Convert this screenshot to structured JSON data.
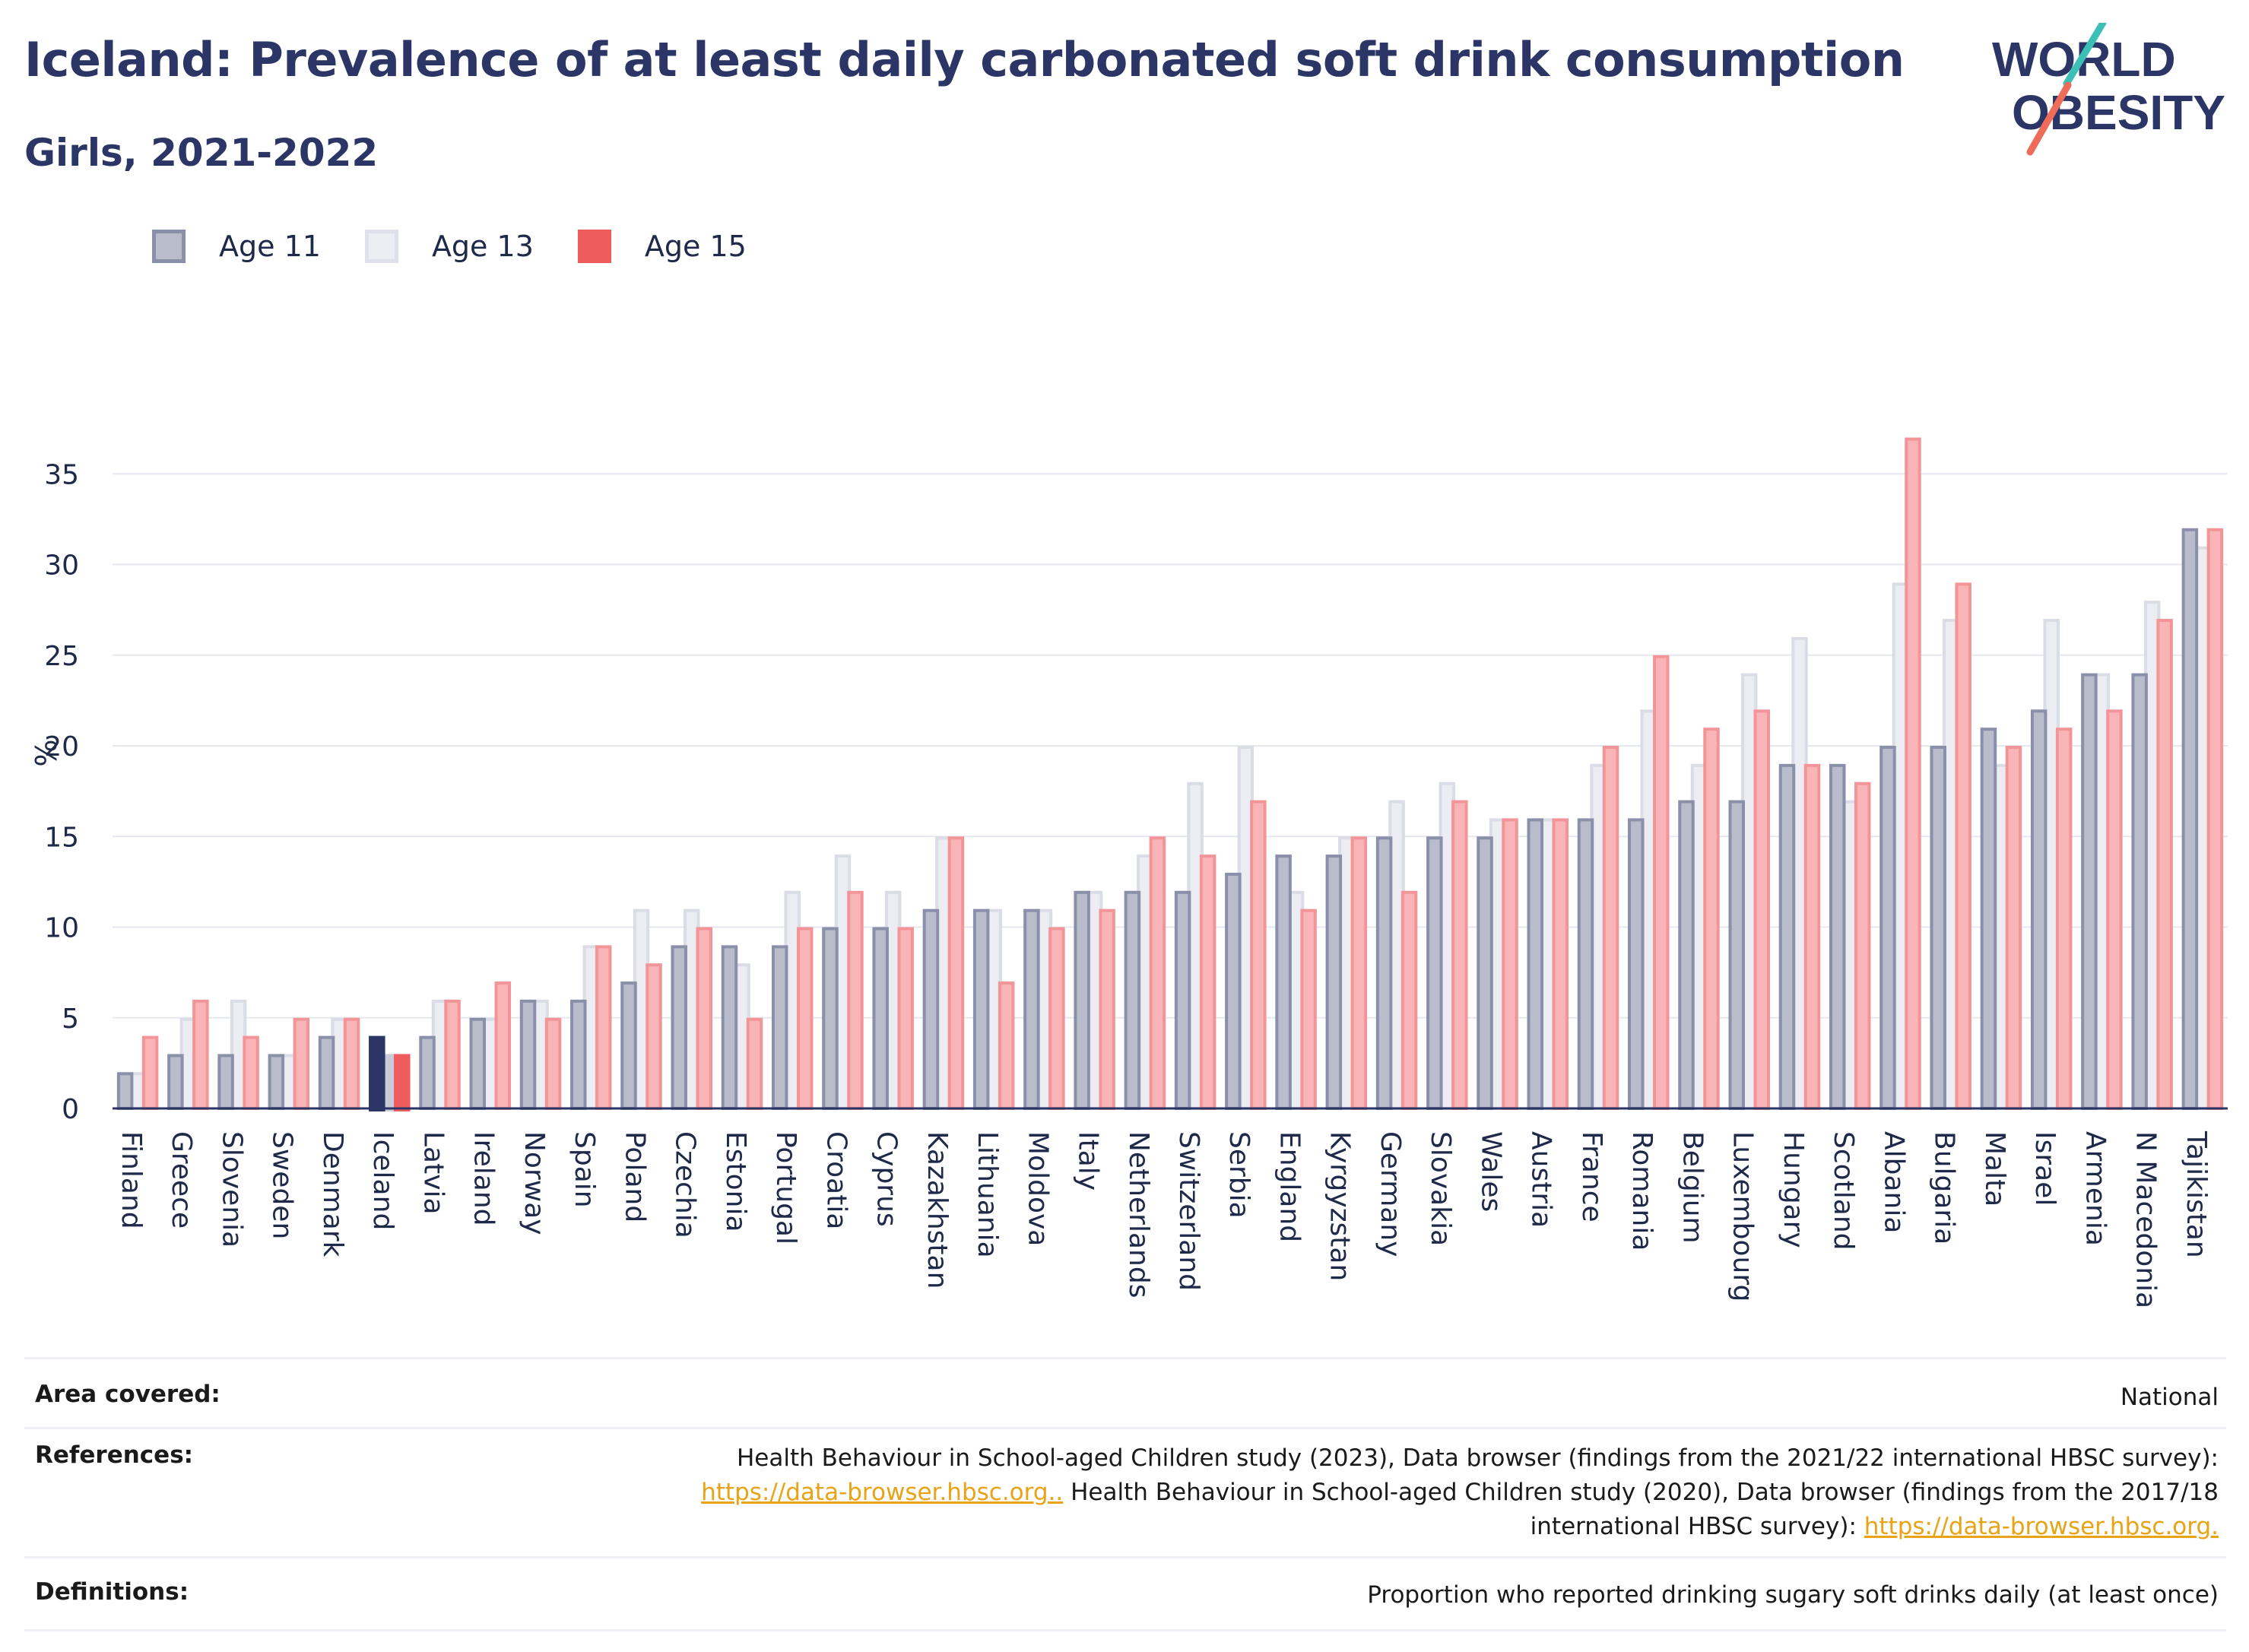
{
  "header": {
    "title": "Iceland: Prevalence of at least daily carbonated soft drink consumption",
    "subtitle": "Girls, 2021-2022"
  },
  "logo": {
    "line1": "WORLD",
    "line2": "OBESITY"
  },
  "legend": [
    {
      "label": "Age 11",
      "color": "#b8bccb"
    },
    {
      "label": "Age 13",
      "color": "#e6e7ee"
    },
    {
      "label": "Age 15",
      "color": "#ee5c5c"
    }
  ],
  "colors": {
    "age11_fill": "#b8bccb",
    "age11_stroke": "#8a90aa",
    "age13_fill": "#ecedf2",
    "age13_stroke": "#dadce6",
    "age15_fill": "#f8b4b6",
    "age15_stroke": "#f39598",
    "highlight_age11": "#2b3566",
    "highlight_age13": "#c9ccd8",
    "highlight_age15": "#ee5c5c",
    "axis": "#2b3566",
    "grid": "#e6e8ef"
  },
  "chart_data": {
    "type": "bar",
    "ylabel": "%",
    "xlabel": "",
    "ylim": [
      0,
      38
    ],
    "yticks": [
      0,
      5,
      10,
      15,
      20,
      25,
      30,
      35
    ],
    "grid": true,
    "highlight": "Iceland",
    "categories": [
      "Finland",
      "Greece",
      "Slovenia",
      "Sweden",
      "Denmark",
      "Iceland",
      "Latvia",
      "Ireland",
      "Norway",
      "Spain",
      "Poland",
      "Czechia",
      "Estonia",
      "Portugal",
      "Croatia",
      "Cyprus",
      "Kazakhstan",
      "Lithuania",
      "Moldova",
      "Italy",
      "Netherlands",
      "Switzerland",
      "Serbia",
      "England",
      "Kyrgyzstan",
      "Germany",
      "Slovakia",
      "Wales",
      "Austria",
      "France",
      "Romania",
      "Belgium",
      "Luxembourg",
      "Hungary",
      "Scotland",
      "Albania",
      "Bulgaria",
      "Malta",
      "Israel",
      "Armenia",
      "N Macedonia",
      "Tajikistan"
    ],
    "series": [
      {
        "name": "Age 11",
        "values": [
          2,
          3,
          3,
          3,
          4,
          4,
          4,
          5,
          6,
          6,
          7,
          9,
          9,
          9,
          10,
          10,
          11,
          11,
          11,
          12,
          12,
          12,
          13,
          14,
          14,
          15,
          15,
          15,
          16,
          16,
          16,
          17,
          17,
          19,
          19,
          20,
          20,
          21,
          22,
          24,
          24,
          32
        ]
      },
      {
        "name": "Age 13",
        "values": [
          2,
          5,
          6,
          3,
          5,
          3,
          6,
          5,
          6,
          9,
          11,
          11,
          8,
          12,
          14,
          12,
          15,
          11,
          11,
          12,
          14,
          18,
          20,
          12,
          15,
          17,
          18,
          16,
          16,
          19,
          22,
          19,
          24,
          26,
          17,
          29,
          27,
          19,
          27,
          24,
          28,
          31
        ]
      },
      {
        "name": "Age 15",
        "values": [
          4,
          6,
          4,
          5,
          5,
          3,
          6,
          7,
          5,
          9,
          8,
          10,
          5,
          10,
          12,
          10,
          15,
          7,
          10,
          11,
          15,
          14,
          17,
          11,
          15,
          12,
          17,
          16,
          16,
          20,
          25,
          21,
          22,
          19,
          18,
          37,
          29,
          20,
          21,
          22,
          27,
          32
        ]
      }
    ]
  },
  "info": {
    "area_label": "Area covered:",
    "area_value": "National",
    "references_label": "References:",
    "ref_text_1": "Health Behaviour in School-aged Children study (2023), Data browser (findings from the 2021/22 international HBSC survey):",
    "ref_link_1": "https://data-browser.hbsc.org..",
    "ref_text_2": " Health Behaviour in School-aged Children study (2020), Data browser (findings from the 2017/18",
    "ref_text_3": "international HBSC survey): ",
    "ref_link_2": "https://data-browser.hbsc.org.",
    "definitions_label": "Definitions:",
    "definitions_value": "Proportion who reported drinking sugary soft drinks daily (at least once)"
  }
}
